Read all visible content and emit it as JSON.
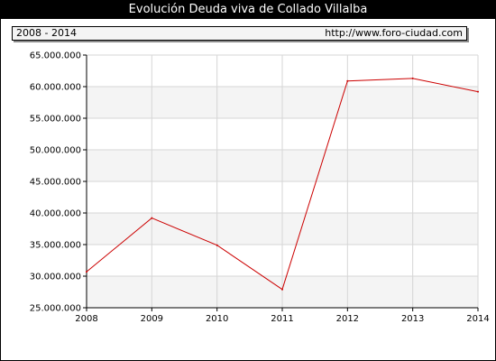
{
  "header": {
    "title": "Evolución Deuda viva de Collado Villalba"
  },
  "info_bar": {
    "period": "2008 - 2014",
    "source": "http://www.foro-ciudad.com"
  },
  "colors": {
    "line": "#cc0000",
    "band": "#f4f4f4",
    "grid": "#d6d6d6"
  },
  "chart_data": {
    "type": "line",
    "title": "Evolución Deuda viva de Collado Villalba",
    "xlabel": "",
    "ylabel": "",
    "x": [
      2008,
      2009,
      2010,
      2011,
      2012,
      2013,
      2014
    ],
    "x_tick_labels": [
      "2008",
      "2009",
      "2010",
      "2011",
      "2012",
      "2013",
      "2014"
    ],
    "series": [
      {
        "values": [
          30700000,
          39200000,
          34900000,
          27900000,
          60900000,
          61300000,
          59200000
        ]
      }
    ],
    "ylim": [
      25000000,
      65000000
    ],
    "y_ticks": [
      25000000,
      30000000,
      35000000,
      40000000,
      45000000,
      50000000,
      55000000,
      60000000,
      65000000
    ],
    "y_tick_labels": [
      "25.000.000",
      "30.000.000",
      "35.000.000",
      "40.000.000",
      "45.000.000",
      "50.000.000",
      "55.000.000",
      "60.000.000",
      "65.000.000"
    ],
    "grid": true,
    "alternating_bands": true,
    "legend": "none"
  }
}
